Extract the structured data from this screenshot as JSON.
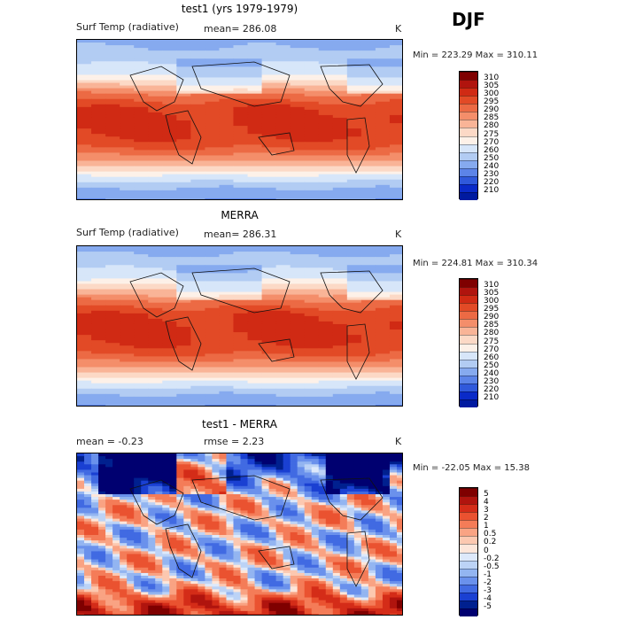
{
  "season": "DJF",
  "panels": [
    {
      "title": "test1 (yrs 1979-1979)",
      "left_label": "Surf Temp (radiative)",
      "mid_label": "mean=  286.08",
      "unit": "K",
      "minmax": "Min = 223.29 Max = 310.11",
      "colorbar": [
        "310",
        "305",
        "300",
        "295",
        "290",
        "285",
        "280",
        "275",
        "270",
        "260",
        "250",
        "240",
        "230",
        "220",
        "210"
      ]
    },
    {
      "title": "MERRA",
      "left_label": "Surf Temp (radiative)",
      "mid_label": "mean=  286.31",
      "unit": "K",
      "minmax": "Min = 224.81 Max = 310.34",
      "colorbar": [
        "310",
        "305",
        "300",
        "295",
        "290",
        "285",
        "280",
        "275",
        "270",
        "260",
        "250",
        "240",
        "230",
        "220",
        "210"
      ]
    },
    {
      "title": "test1 - MERRA",
      "left_label": "mean =   -0.23",
      "mid_label": "rmse =    2.23",
      "unit": "K",
      "minmax": "Min = -22.05 Max =   15.38",
      "colorbar": [
        "5",
        "4",
        "3",
        "2",
        "1",
        "0.5",
        "0.2",
        "0",
        "-0.2",
        "-0.5",
        "-1",
        "-2",
        "-3",
        "-4",
        "-5"
      ]
    }
  ],
  "colors": {
    "abs_scale": [
      "#7f0000",
      "#b0140e",
      "#d02a14",
      "#e24a26",
      "#ec6a44",
      "#f48e6a",
      "#f9b497",
      "#fcd9c6",
      "#fdf1e8",
      "#d7e6f9",
      "#b2ccf3",
      "#86aaef",
      "#5c84e8",
      "#3059db",
      "#0a2ac8",
      "#001aa0"
    ],
    "diff_scale": [
      "#7f0000",
      "#b0140e",
      "#d42c18",
      "#ea5230",
      "#f47c58",
      "#f9a383",
      "#fcc8b0",
      "#fde6da",
      "#dde9fb",
      "#bcd3f6",
      "#93b5f1",
      "#6a91ec",
      "#416ae2",
      "#1a40d2",
      "#00208f",
      "#000070"
    ]
  },
  "chart_data": [
    {
      "type": "heatmap",
      "title": "test1 (yrs 1979-1979)",
      "variable": "Surf Temp (radiative)",
      "unit": "K",
      "mean": 286.08,
      "min": 223.29,
      "max": 310.11,
      "levels": [
        210,
        220,
        230,
        240,
        250,
        260,
        270,
        275,
        280,
        285,
        290,
        295,
        300,
        305,
        310
      ],
      "lat_profile": [
        {
          "lat": 90,
          "value": 245
        },
        {
          "lat": 60,
          "value": 262
        },
        {
          "lat": 45,
          "value": 276
        },
        {
          "lat": 30,
          "value": 290
        },
        {
          "lat": 15,
          "value": 299
        },
        {
          "lat": 0,
          "value": 302
        },
        {
          "lat": -15,
          "value": 301
        },
        {
          "lat": -30,
          "value": 296
        },
        {
          "lat": -45,
          "value": 285
        },
        {
          "lat": -60,
          "value": 272
        },
        {
          "lat": -75,
          "value": 250
        },
        {
          "lat": -90,
          "value": 240
        }
      ]
    },
    {
      "type": "heatmap",
      "title": "MERRA",
      "variable": "Surf Temp (radiative)",
      "unit": "K",
      "mean": 286.31,
      "min": 224.81,
      "max": 310.34,
      "levels": [
        210,
        220,
        230,
        240,
        250,
        260,
        270,
        275,
        280,
        285,
        290,
        295,
        300,
        305,
        310
      ],
      "lat_profile": [
        {
          "lat": 90,
          "value": 244
        },
        {
          "lat": 60,
          "value": 263
        },
        {
          "lat": 45,
          "value": 277
        },
        {
          "lat": 30,
          "value": 290
        },
        {
          "lat": 15,
          "value": 299
        },
        {
          "lat": 0,
          "value": 302
        },
        {
          "lat": -15,
          "value": 301
        },
        {
          "lat": -30,
          "value": 296
        },
        {
          "lat": -45,
          "value": 285
        },
        {
          "lat": -60,
          "value": 272
        },
        {
          "lat": -75,
          "value": 250
        },
        {
          "lat": -90,
          "value": 240
        }
      ]
    },
    {
      "type": "heatmap",
      "title": "test1 - MERRA",
      "unit": "K",
      "mean": -0.23,
      "rmse": 2.23,
      "min": -22.05,
      "max": 15.38,
      "levels": [
        -5,
        -4,
        -3,
        -2,
        -1,
        -0.5,
        -0.2,
        0,
        0.2,
        0.5,
        1,
        2,
        3,
        4,
        5
      ],
      "lat_profile": [
        {
          "lat": 90,
          "value": -4
        },
        {
          "lat": 60,
          "value": -1.5
        },
        {
          "lat": 45,
          "value": -0.5
        },
        {
          "lat": 30,
          "value": 0.3
        },
        {
          "lat": 15,
          "value": 0.2
        },
        {
          "lat": 0,
          "value": -0.3
        },
        {
          "lat": -15,
          "value": 0.1
        },
        {
          "lat": -30,
          "value": 0.3
        },
        {
          "lat": -45,
          "value": -0.2
        },
        {
          "lat": -60,
          "value": 0.5
        },
        {
          "lat": -75,
          "value": 3
        },
        {
          "lat": -90,
          "value": 4
        }
      ]
    }
  ]
}
